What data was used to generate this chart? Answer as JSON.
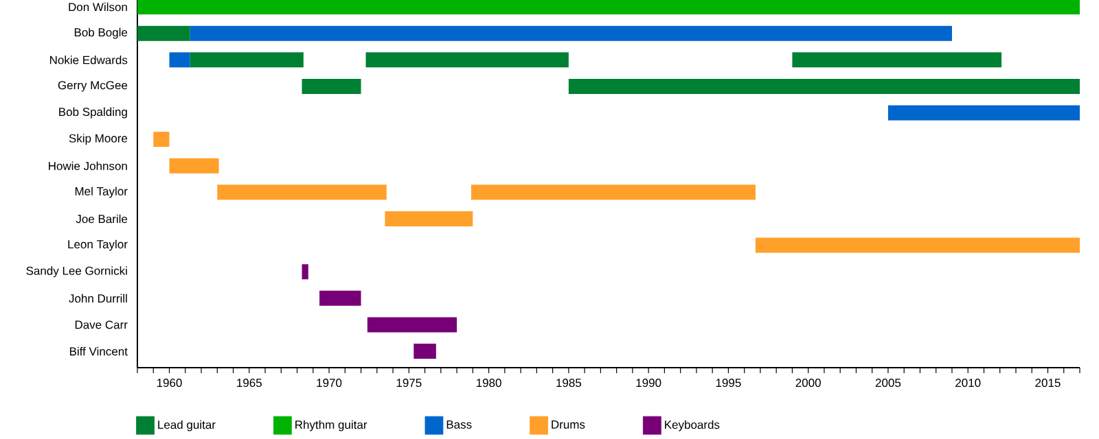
{
  "chart_data": {
    "type": "bar",
    "orientation": "horizontal",
    "legend": "bottom",
    "categories": [
      "Don Wilson",
      "Bob Bogle",
      "Nokie Edwards",
      "Gerry McGee",
      "Bob Spalding",
      "Skip Moore",
      "Howie Johnson",
      "Mel Taylor",
      "Joe Barile",
      "Leon Taylor",
      "Sandy Lee Gornicki",
      "John Durrill",
      "Dave Carr",
      "Biff Vincent"
    ],
    "xlim": [
      1958,
      2017
    ],
    "xticks": [
      {
        "value": 1958,
        "label": null
      },
      {
        "value": 1959,
        "label": null
      },
      1960,
      {
        "value": 1961,
        "label": null
      },
      {
        "value": 1962,
        "label": null
      },
      {
        "value": 1963,
        "label": null
      },
      {
        "value": 1964,
        "label": null
      },
      1965,
      {
        "value": 1966,
        "label": null
      },
      {
        "value": 1967,
        "label": null
      },
      {
        "value": 1968,
        "label": null
      },
      {
        "value": 1969,
        "label": null
      },
      1970,
      {
        "value": 1971,
        "label": null
      },
      {
        "value": 1972,
        "label": null
      },
      {
        "value": 1973,
        "label": null
      },
      {
        "value": 1974,
        "label": null
      },
      1975,
      {
        "value": 1976,
        "label": null
      },
      {
        "value": 1977,
        "label": null
      },
      {
        "value": 1978,
        "label": null
      },
      {
        "value": 1979,
        "label": null
      },
      1980,
      {
        "value": 1981,
        "label": null
      },
      {
        "value": 1982,
        "label": null
      },
      {
        "value": 1983,
        "label": null
      },
      {
        "value": 1984,
        "label": null
      },
      1985,
      {
        "value": 1986,
        "label": null
      },
      {
        "value": 1987,
        "label": null
      },
      {
        "value": 1988,
        "label": null
      },
      {
        "value": 1989,
        "label": null
      },
      1990,
      {
        "value": 1991,
        "label": null
      },
      {
        "value": 1992,
        "label": null
      },
      {
        "value": 1993,
        "label": null
      },
      {
        "value": 1994,
        "label": null
      },
      1995,
      {
        "value": 1996,
        "label": null
      },
      {
        "value": 1997,
        "label": null
      },
      {
        "value": 1998,
        "label": null
      },
      {
        "value": 1999,
        "label": null
      },
      2000,
      {
        "value": 2001,
        "label": null
      },
      {
        "value": 2002,
        "label": null
      },
      {
        "value": 2003,
        "label": null
      },
      {
        "value": 2004,
        "label": null
      },
      2005,
      {
        "value": 2006,
        "label": null
      },
      {
        "value": 2007,
        "label": null
      },
      {
        "value": 2008,
        "label": null
      },
      {
        "value": 2009,
        "label": null
      },
      2010,
      {
        "value": 2011,
        "label": null
      },
      {
        "value": 2012,
        "label": null
      },
      {
        "value": 2013,
        "label": null
      },
      {
        "value": 2014,
        "label": null
      },
      2015,
      {
        "value": 2016,
        "label": null
      },
      {
        "value": 2017,
        "label": null
      }
    ],
    "series": [
      {
        "name": "Lead guitar",
        "color": "#008033",
        "base": [
          null,
          1958,
          1961.3,
          1968.3,
          null,
          null,
          null,
          null,
          null,
          null,
          null,
          null,
          null,
          null
        ],
        "values": [
          null,
          3.3,
          7.1,
          3.7,
          null,
          null,
          null,
          null,
          null,
          null,
          null,
          null,
          null,
          null
        ]
      },
      {
        "name": "Rhythm guitar",
        "color": "#00b300",
        "base": [
          1958,
          null,
          null,
          null,
          null,
          null,
          null,
          null,
          null,
          null,
          null,
          null,
          null,
          null
        ],
        "values": [
          59,
          null,
          null,
          null,
          null,
          null,
          null,
          null,
          null,
          null,
          null,
          null,
          null,
          null
        ]
      },
      {
        "name": "Bass",
        "color": "#0066cc",
        "base": [
          null,
          1961.3,
          1960,
          null,
          2005,
          null,
          null,
          null,
          null,
          null,
          null,
          null,
          null,
          null
        ],
        "values": [
          null,
          47.7,
          1.3,
          null,
          12,
          null,
          null,
          null,
          null,
          null,
          null,
          null,
          null,
          null
        ]
      },
      {
        "name": "Drums",
        "color": "#ffa02a",
        "base": [
          null,
          null,
          null,
          null,
          null,
          1959,
          1960,
          1963,
          1973.5,
          1996.7,
          null,
          null,
          null,
          null
        ],
        "values": [
          null,
          null,
          null,
          null,
          null,
          1,
          3.1,
          10.6,
          5.5,
          20.3,
          null,
          null,
          null,
          null
        ]
      },
      {
        "name": "Keyboards",
        "color": "#770077",
        "base": [
          null,
          null,
          null,
          null,
          null,
          null,
          null,
          null,
          null,
          null,
          1968.3,
          1969.4,
          1972.4,
          1975.3
        ],
        "values": [
          null,
          null,
          null,
          null,
          null,
          null,
          null,
          null,
          null,
          null,
          0.4,
          2.6,
          5.6,
          1.4
        ]
      },
      {
        "color": "#008033",
        "base": [
          null,
          null,
          1972.3,
          1985,
          null,
          null,
          null,
          null,
          null,
          null,
          null,
          null,
          null,
          null
        ],
        "values": [
          null,
          null,
          12.7,
          32,
          null,
          null,
          null,
          null,
          null,
          null,
          null,
          null,
          null,
          null
        ]
      },
      {
        "color": "#008033",
        "base": [
          null,
          null,
          1999,
          null,
          null,
          null,
          null,
          null,
          null,
          null,
          null,
          null,
          null,
          null
        ],
        "values": [
          null,
          null,
          13.1,
          null,
          null,
          null,
          null,
          null,
          null,
          null,
          null,
          null,
          null,
          null
        ]
      },
      {
        "color": "#ffa02a",
        "base": [
          null,
          null,
          null,
          null,
          null,
          null,
          null,
          1978.9,
          null,
          null,
          null,
          null,
          null,
          null
        ],
        "values": [
          null,
          null,
          null,
          null,
          null,
          null,
          null,
          17.8,
          null,
          null,
          null,
          null,
          null,
          null
        ]
      }
    ]
  }
}
